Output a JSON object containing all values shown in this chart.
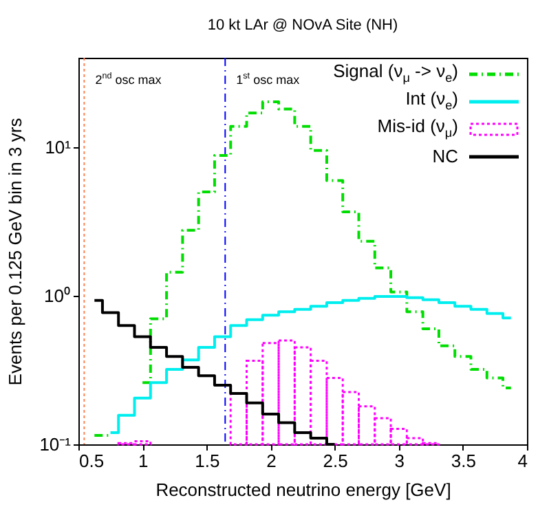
{
  "chart_data": {
    "type": "step",
    "title": "10 kt LAr @ NOvA Site (NH)",
    "xlabel": "Reconstructed neutrino energy [GeV]",
    "ylabel": "Events per 0.125 GeV bin in 3 yrs",
    "x": [
      0.625,
      0.75,
      0.875,
      1,
      1.125,
      1.25,
      1.375,
      1.5,
      1.625,
      1.75,
      1.875,
      2,
      2.125,
      2.25,
      2.375,
      2.5,
      2.625,
      2.75,
      2.875,
      3,
      3.125,
      3.25,
      3.375,
      3.5,
      3.625,
      3.75,
      3.875
    ],
    "series": [
      {
        "name": "Signal (ν$_{μ}$ -> ν$_{e}$)",
        "color": "#00dd00",
        "line_style": "dashed",
        "values": [
          0.115,
          0.115,
          null,
          0.26,
          0.7,
          1.44,
          2.76,
          5.0,
          8.8,
          13.8,
          17,
          20.2,
          18.1,
          13.8,
          9.5,
          5.96,
          3.67,
          2.33,
          1.54,
          1.06,
          0.78,
          0.6,
          0.46,
          0.39,
          0.32,
          0.28,
          0.24
        ]
      },
      {
        "name": "Int (ν$_{e}$)",
        "color": "#00eeee",
        "line_style": "solid",
        "values": [
          null,
          0.12,
          0.157,
          0.205,
          0.26,
          0.32,
          0.37,
          0.45,
          0.53,
          0.63,
          0.69,
          0.74,
          0.78,
          0.81,
          0.85,
          0.9,
          0.93,
          0.96,
          0.99,
          0.99,
          0.97,
          0.94,
          0.9,
          0.85,
          0.81,
          0.76,
          0.71
        ]
      },
      {
        "name": "Mis-id (ν$_{μ}$)",
        "type": "bar",
        "color": "#ff00ff",
        "line_style": "dotted",
        "values": [
          null,
          null,
          0.102,
          0.105,
          null,
          null,
          null,
          null,
          null,
          0.22,
          0.365,
          0.48,
          0.5,
          0.45,
          0.365,
          0.28,
          0.225,
          0.18,
          0.15,
          0.127,
          0.11,
          0.102,
          null,
          null,
          null,
          null,
          null
        ]
      },
      {
        "name": "NC",
        "color": "#000000",
        "line_style": "solid",
        "values": [
          0.93,
          0.77,
          0.63,
          0.53,
          0.45,
          0.39,
          0.33,
          0.29,
          0.25,
          0.22,
          0.19,
          0.16,
          0.14,
          0.12,
          0.11,
          0.1,
          null,
          null,
          null,
          null,
          null,
          null,
          null,
          null,
          null,
          null,
          null
        ]
      }
    ],
    "xlim": [
      0.5,
      4
    ],
    "xticks": [
      0.5,
      1,
      1.5,
      2,
      2.5,
      3,
      3.5,
      4
    ],
    "ylim": [
      0.1,
      40
    ],
    "yticks": [
      {
        "value": 0.1,
        "label": "10⁻¹"
      },
      {
        "value": 1,
        "label": "10⁰"
      },
      {
        "value": 10,
        "label": "10¹"
      }
    ],
    "log": "y",
    "legend": "top right",
    "ref_lines": [
      {
        "axis": "x",
        "value": 0.545,
        "label": "2$^{nd}$ osc max",
        "color": "#ff8050",
        "line_style": "dotted"
      },
      {
        "axis": "x",
        "value": 1.645,
        "label": "1$^{st}$ osc max",
        "color": "#0000ff",
        "line_style": "dashed"
      }
    ]
  }
}
